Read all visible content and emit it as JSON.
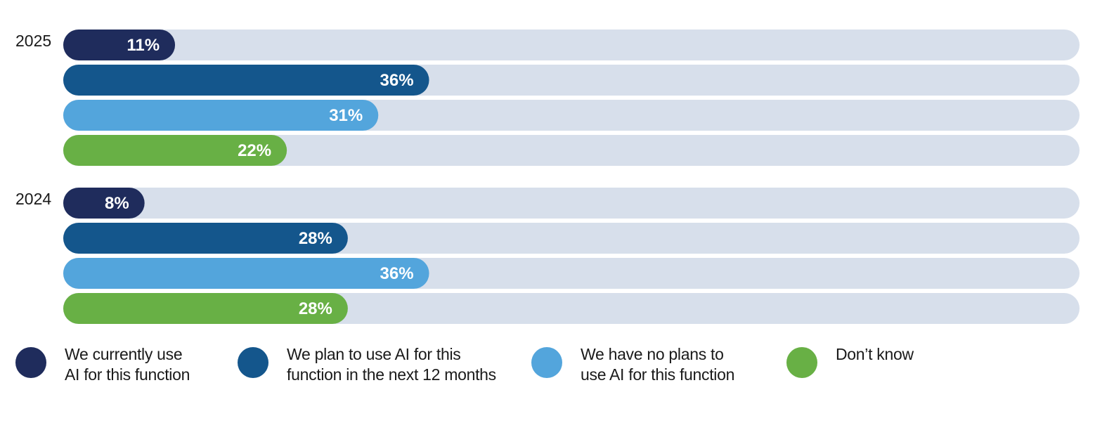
{
  "chart_data": {
    "type": "bar",
    "orientation": "horizontal",
    "stacked": false,
    "xlim": [
      0,
      100
    ],
    "groups": [
      {
        "label": "2025",
        "values": [
          {
            "series": "We currently use AI for this function",
            "value": 11,
            "label": "11%"
          },
          {
            "series": "We plan to use AI for this function in the next 12 months",
            "value": 36,
            "label": "36%"
          },
          {
            "series": "We have no plans to use AI for this function",
            "value": 31,
            "label": "31%"
          },
          {
            "series": "Don’t know",
            "value": 22,
            "label": "22%"
          }
        ]
      },
      {
        "label": "2024",
        "values": [
          {
            "series": "We currently use AI for this function",
            "value": 8,
            "label": "8%"
          },
          {
            "series": "We plan to use AI for this function in the next 12 months",
            "value": 28,
            "label": "28%"
          },
          {
            "series": "We have no plans to use AI for this function",
            "value": 36,
            "label": "36%"
          },
          {
            "series": "Don’t know",
            "value": 28,
            "label": "28%"
          }
        ]
      }
    ],
    "legend_position": "bottom"
  },
  "legend": [
    {
      "label": "We currently use\nAI for this function",
      "color": "#1f2c5c"
    },
    {
      "label": "We plan to use AI for this\nfunction in the next 12 months",
      "color": "#14568c"
    },
    {
      "label": "We have no plans to\nuse AI for this function",
      "color": "#53a5dc"
    },
    {
      "label": "Don’t know",
      "color": "#68b045"
    }
  ],
  "colors": {
    "track": "#d7dfeb",
    "bar_text": "#ffffff",
    "group_label": "#1a1a1a"
  }
}
